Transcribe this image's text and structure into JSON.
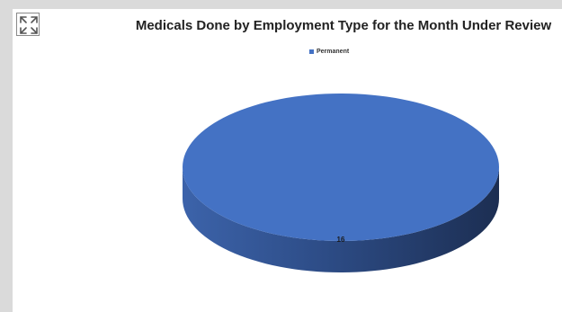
{
  "toolbar": {
    "expand_icon": "fullscreen-expand-icon"
  },
  "chart_data": {
    "type": "pie",
    "title": "Medicals Done by Employment Type for the Month Under Review",
    "categories": [
      "Permanent"
    ],
    "values": [
      16
    ],
    "data_labels": [
      "16"
    ],
    "legend_position": "top",
    "three_d": true,
    "colors": {
      "Permanent": "#4472C4"
    }
  }
}
